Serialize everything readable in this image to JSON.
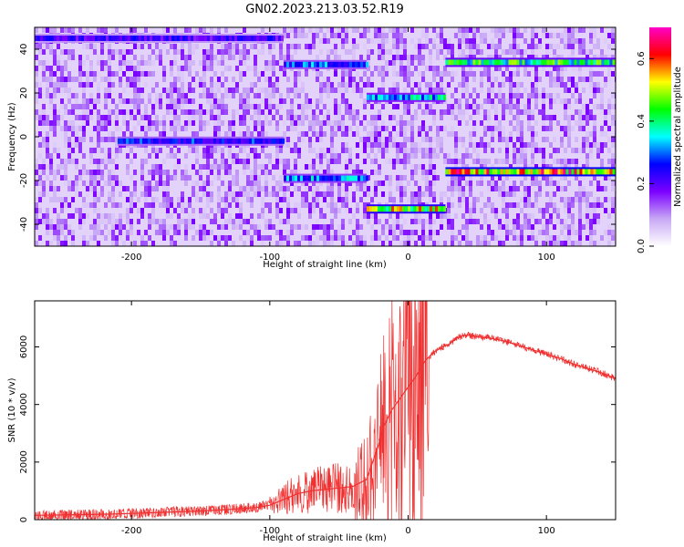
{
  "page_title": "GN02.2023.213.03.52.R19",
  "chart_data": [
    {
      "type": "heatmap",
      "title": "GN02.2023.213.03.52.R19",
      "xlabel": "Height of straight line (km)",
      "ylabel": "Frequency (Hz)",
      "xlim": [
        -270,
        150
      ],
      "ylim": [
        -50,
        50
      ],
      "xticks": [
        -200,
        -100,
        0,
        100
      ],
      "yticks": [
        -40,
        -20,
        0,
        20,
        40
      ],
      "colorbar": {
        "label": "Normalized spectral amplitude",
        "range": [
          0,
          0.7
        ],
        "ticks": [
          0,
          0.2,
          0.4,
          0.6
        ],
        "colormap": [
          "#ffffff",
          "#c8a8f5",
          "#7b00ff",
          "#0000ff",
          "#00ffff",
          "#00ff00",
          "#ffff00",
          "#ff0000",
          "#ff00c8"
        ]
      },
      "background_amplitude": 0.1,
      "tracks": [
        {
          "x": [
            -270,
            -90
          ],
          "freq": 45,
          "amplitude": 0.22
        },
        {
          "x": [
            -90,
            -30
          ],
          "freq": 33,
          "amplitude": 0.3
        },
        {
          "x": [
            -210,
            -90
          ],
          "freq": -2,
          "amplitude": 0.27
        },
        {
          "x": [
            -90,
            -30
          ],
          "freq": -19,
          "amplitude": 0.32
        },
        {
          "x": [
            -30,
            27
          ],
          "freq": 18,
          "amplitude": 0.36
        },
        {
          "x": [
            -30,
            27
          ],
          "freq": -33,
          "amplitude": 0.52
        },
        {
          "x": [
            27,
            150
          ],
          "freq": 34,
          "amplitude": 0.42
        },
        {
          "x": [
            27,
            150
          ],
          "freq": -16,
          "amplitude": 0.58
        }
      ]
    },
    {
      "type": "line",
      "xlabel": "Height of straight line (km)",
      "ylabel": "SNR (10 * v/v)",
      "xlim": [
        -270,
        150
      ],
      "ylim": [
        0,
        7600
      ],
      "xticks": [
        -200,
        -100,
        0,
        100
      ],
      "yticks": [
        0,
        2000,
        4000,
        6000
      ],
      "color": "#f03030",
      "x": [
        -270,
        -240,
        -210,
        -180,
        -150,
        -130,
        -110,
        -100,
        -90,
        -80,
        -70,
        -60,
        -50,
        -40,
        -30,
        -22,
        -18,
        -12,
        -6,
        0,
        6,
        12,
        18,
        25,
        30,
        35,
        40,
        45,
        50,
        60,
        70,
        80,
        90,
        100,
        110,
        120,
        130,
        140,
        150
      ],
      "y": [
        150,
        170,
        200,
        250,
        300,
        350,
        420,
        500,
        700,
        900,
        1000,
        1050,
        1100,
        1150,
        1400,
        2500,
        3200,
        3800,
        4200,
        4600,
        5000,
        5500,
        5800,
        6000,
        6100,
        6300,
        6400,
        6400,
        6350,
        6300,
        6200,
        6050,
        5900,
        5750,
        5600,
        5400,
        5250,
        5100,
        4900
      ]
    }
  ]
}
